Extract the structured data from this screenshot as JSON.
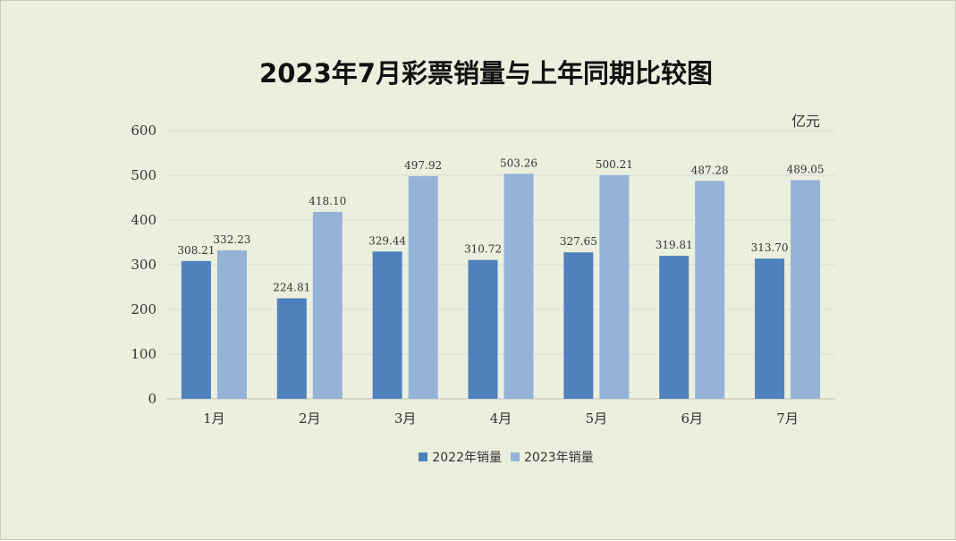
{
  "chart_data": {
    "type": "bar",
    "title": "2023年7月彩票销量与上年同期比较图",
    "unit_label": "亿元",
    "categories": [
      "1月",
      "2月",
      "3月",
      "4月",
      "5月",
      "6月",
      "7月"
    ],
    "series": [
      {
        "name": "2022年销量",
        "color": "#4f81bd",
        "values": [
          308.21,
          224.81,
          329.44,
          310.72,
          327.65,
          319.81,
          313.7
        ],
        "labels": [
          "308.21",
          "224.81",
          "329.44",
          "310.72",
          "327.65",
          "319.81",
          "313.70"
        ]
      },
      {
        "name": "2023年销量",
        "color": "#95b3d7",
        "values": [
          332.23,
          418.1,
          497.92,
          503.26,
          500.21,
          487.28,
          489.05
        ],
        "labels": [
          "332.23",
          "418.10",
          "497.92",
          "503.26",
          "500.21",
          "487.28",
          "489.05"
        ]
      }
    ],
    "yticks": [
      "0",
      "100",
      "200",
      "300",
      "400",
      "500",
      "600"
    ],
    "ylim": [
      0,
      600
    ],
    "grid": true,
    "legend_position": "bottom"
  },
  "colors": {
    "background": "#ebefde",
    "gridline": "#d9d9d9",
    "axis_text": "#333333"
  }
}
